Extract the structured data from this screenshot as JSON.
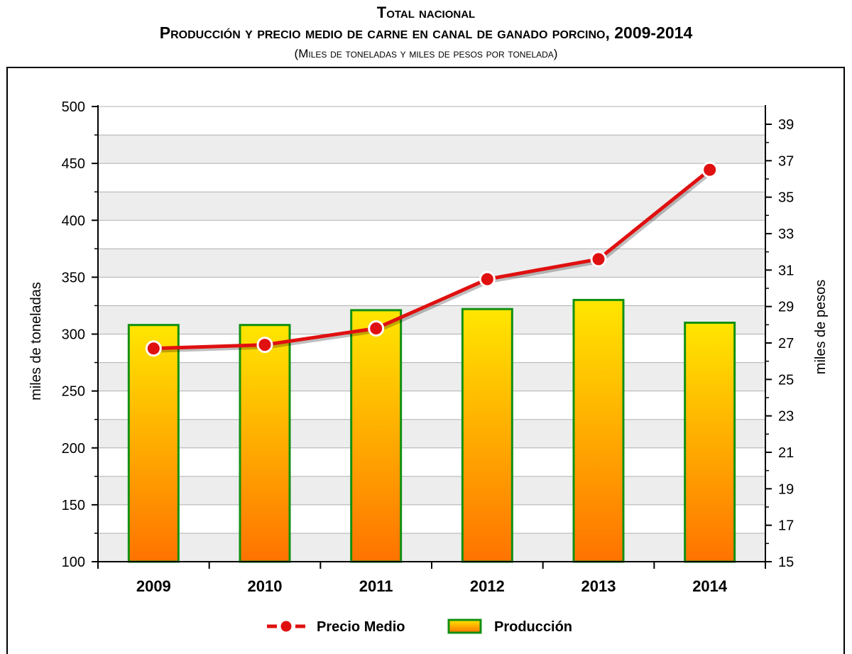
{
  "header": {
    "title": "Total nacional",
    "subtitle": "Producción y precio medio de carne en canal de ganado porcino, 2009-2014",
    "units": "(Miles de toneladas y miles de pesos por tonelada)"
  },
  "chart_data": {
    "type": "bar",
    "categories": [
      "2009",
      "2010",
      "2011",
      "2012",
      "2013",
      "2014"
    ],
    "ylabel_left": "miles de toneladas",
    "ylabel_right": "miles de pesos",
    "ylim_left": [
      100,
      500
    ],
    "yticks_left": [
      100,
      150,
      200,
      250,
      300,
      350,
      400,
      450,
      500
    ],
    "ylim_right": [
      15,
      39
    ],
    "yticks_right": [
      15,
      17,
      19,
      21,
      23,
      25,
      27,
      29,
      31,
      33,
      35,
      37,
      39
    ],
    "series": [
      {
        "name": "Producción",
        "type": "bar",
        "axis": "left",
        "values": [
          308,
          308,
          321,
          322,
          330,
          310
        ]
      },
      {
        "name": "Precio Medio",
        "type": "line",
        "axis": "right",
        "values": [
          26.7,
          26.9,
          27.8,
          30.5,
          31.6,
          36.5
        ]
      }
    ],
    "legend": [
      "Precio Medio",
      "Producción"
    ],
    "legend_position": "bottom",
    "grid": true,
    "colors": {
      "bar_top": "#ffe600",
      "bar_bottom": "#ff7300",
      "bar_border": "#119011",
      "line": "#e01010",
      "marker_fill": "#e01010",
      "marker_stroke": "#ffffff",
      "band": "#ededed",
      "grid": "#b0b0b0"
    }
  }
}
